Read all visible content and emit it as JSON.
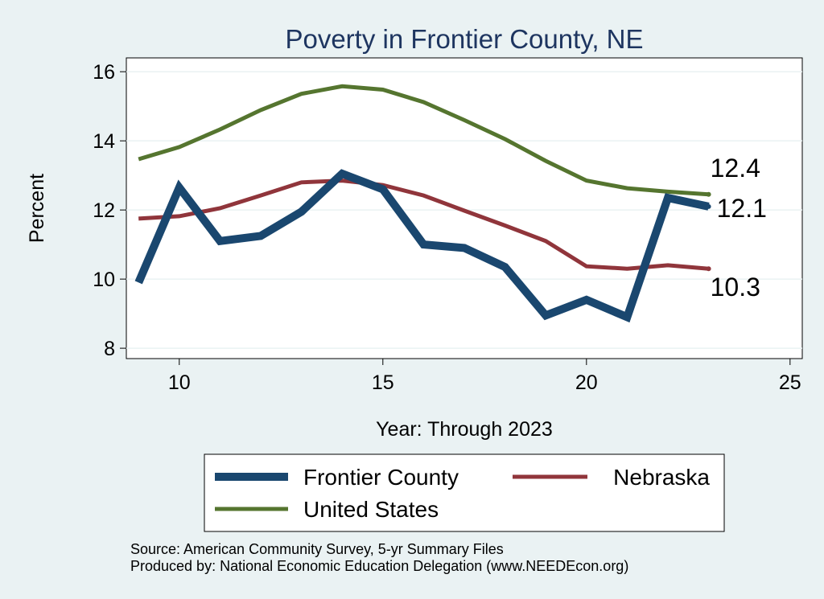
{
  "chart_data": {
    "type": "line",
    "title": "Poverty in Frontier County, NE",
    "xlabel": "Year: Through 2023",
    "ylabel": "Percent",
    "xlim": [
      8.7,
      25.3
    ],
    "ylim": [
      7.7,
      16.4
    ],
    "xticks": [
      10,
      15,
      20,
      25
    ],
    "yticks": [
      8,
      10,
      12,
      14,
      16
    ],
    "grid": true,
    "legend_position": "bottom",
    "series": [
      {
        "name": "Frontier County",
        "color": "#1a476f",
        "x": [
          9,
          10,
          11,
          12,
          13,
          14,
          15,
          16,
          17,
          18,
          19,
          20,
          21,
          22,
          23
        ],
        "values": [
          9.9,
          12.65,
          11.1,
          11.25,
          11.95,
          13.05,
          12.6,
          11.0,
          10.9,
          10.35,
          8.95,
          9.4,
          8.9,
          12.35,
          12.1
        ],
        "end_label": "12.1"
      },
      {
        "name": "Nebraska",
        "color": "#90353b",
        "x": [
          9,
          10,
          11,
          12,
          13,
          14,
          15,
          16,
          17,
          18,
          19,
          20,
          21,
          22,
          23
        ],
        "values": [
          11.75,
          11.82,
          12.05,
          12.42,
          12.8,
          12.85,
          12.72,
          12.42,
          11.98,
          11.55,
          11.1,
          10.37,
          10.3,
          10.4,
          10.3
        ],
        "end_label": "10.3"
      },
      {
        "name": "United States",
        "color": "#55752f",
        "x": [
          9,
          10,
          11,
          12,
          13,
          14,
          15,
          16,
          17,
          18,
          19,
          20,
          21,
          22,
          23
        ],
        "values": [
          13.47,
          13.82,
          14.33,
          14.89,
          15.36,
          15.58,
          15.48,
          15.12,
          14.6,
          14.05,
          13.42,
          12.85,
          12.63,
          12.53,
          12.45
        ],
        "end_label": "12.4"
      }
    ],
    "notes": [
      "Source: American Community Survey, 5-yr Summary Files",
      "Produced by: National Economic Education Delegation (www.NEEDEcon.org)"
    ]
  }
}
